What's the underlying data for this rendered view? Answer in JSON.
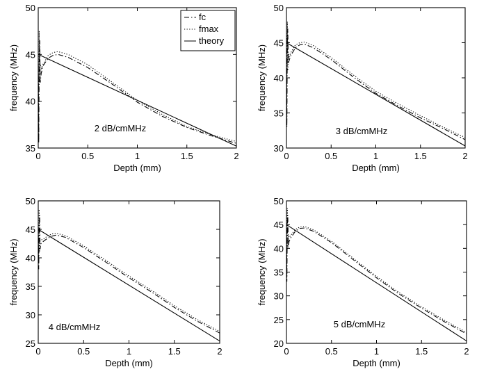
{
  "chart_data": [
    {
      "type": "line",
      "xlabel": "Depth (mm)",
      "ylabel": "frequency (MHz)",
      "annotation": "2 dB/cmMHz",
      "xlim": [
        0,
        2
      ],
      "ylim": [
        35,
        50
      ],
      "xticks": [
        0,
        0.5,
        1,
        1.5,
        2
      ],
      "xtick_labels": [
        "0",
        "0.5",
        "1",
        "1.5",
        "2"
      ],
      "yticks": [
        35,
        40,
        45,
        50
      ],
      "ytick_labels": [
        "35",
        "40",
        "45",
        "50"
      ],
      "legend": {
        "position": "top-right",
        "entries": [
          "fc",
          "fmax",
          "theory"
        ]
      },
      "series": [
        {
          "name": "fc",
          "style": "dash-dot",
          "x": [
            0,
            0.005,
            0.01,
            0.015,
            0.02,
            0.03,
            0.05,
            0.1,
            0.15,
            0.2,
            0.3,
            0.5,
            0.75,
            1.0,
            1.25,
            1.5,
            1.75,
            2.0
          ],
          "y": [
            44.0,
            35.5,
            43.5,
            46.5,
            42.0,
            43.0,
            43.8,
            44.6,
            44.9,
            45.0,
            44.7,
            43.6,
            41.8,
            39.9,
            38.4,
            37.2,
            36.3,
            35.5
          ]
        },
        {
          "name": "fmax",
          "style": "dotted",
          "x": [
            0,
            0.005,
            0.01,
            0.015,
            0.02,
            0.03,
            0.05,
            0.1,
            0.15,
            0.2,
            0.3,
            0.5,
            0.75,
            1.0,
            1.25,
            1.5,
            1.75,
            2.0
          ],
          "y": [
            46.0,
            36.0,
            47.5,
            42.0,
            44.0,
            43.5,
            44.0,
            44.9,
            45.2,
            45.3,
            45.0,
            43.9,
            42.0,
            40.1,
            38.6,
            37.3,
            36.4,
            35.7
          ]
        },
        {
          "name": "theory",
          "style": "solid",
          "x": [
            0,
            2
          ],
          "y": [
            45,
            35.2
          ]
        }
      ]
    },
    {
      "type": "line",
      "xlabel": "Depth (mm)",
      "ylabel": "frequency (MHz)",
      "annotation": "3 dB/cmMHz",
      "xlim": [
        0,
        2
      ],
      "ylim": [
        30,
        50
      ],
      "xticks": [
        0,
        0.5,
        1,
        1.5,
        2
      ],
      "xtick_labels": [
        "0",
        "0.5",
        "1",
        "1.5",
        "2"
      ],
      "yticks": [
        30,
        35,
        40,
        45,
        50
      ],
      "ytick_labels": [
        "30",
        "35",
        "40",
        "45",
        "50"
      ],
      "series": [
        {
          "name": "fc",
          "style": "dash-dot",
          "x": [
            0,
            0.005,
            0.01,
            0.015,
            0.02,
            0.03,
            0.05,
            0.1,
            0.15,
            0.2,
            0.3,
            0.5,
            0.75,
            1.0,
            1.25,
            1.5,
            1.75,
            2.0
          ],
          "y": [
            44.0,
            33.0,
            45.5,
            47.0,
            42.0,
            42.5,
            43.2,
            44.3,
            44.7,
            44.8,
            44.3,
            42.6,
            40.1,
            37.8,
            36.0,
            34.3,
            32.8,
            31.2
          ]
        },
        {
          "name": "fmax",
          "style": "dotted",
          "x": [
            0,
            0.005,
            0.01,
            0.015,
            0.02,
            0.03,
            0.05,
            0.1,
            0.15,
            0.2,
            0.3,
            0.5,
            0.75,
            1.0,
            1.25,
            1.5,
            1.75,
            2.0
          ],
          "y": [
            46.0,
            34.0,
            48.0,
            41.0,
            43.5,
            43.0,
            43.6,
            44.7,
            45.0,
            45.1,
            44.6,
            42.9,
            40.4,
            38.1,
            36.3,
            34.6,
            33.0,
            31.5
          ]
        },
        {
          "name": "theory",
          "style": "solid",
          "x": [
            0,
            2
          ],
          "y": [
            45,
            30.3
          ]
        }
      ]
    },
    {
      "type": "line",
      "xlabel": "Depth (mm)",
      "ylabel": "frequency (MHz)",
      "annotation": "4 dB/cmMHz",
      "xlim": [
        0,
        2
      ],
      "ylim": [
        25,
        50
      ],
      "xticks": [
        0,
        0.5,
        1,
        1.5,
        2
      ],
      "xtick_labels": [
        "0",
        "0.5",
        "1",
        "1.5",
        "2"
      ],
      "yticks": [
        25,
        30,
        35,
        40,
        45,
        50
      ],
      "ytick_labels": [
        "25",
        "30",
        "35",
        "40",
        "45",
        "50"
      ],
      "series": [
        {
          "name": "fc",
          "style": "dash-dot",
          "x": [
            0,
            0.005,
            0.01,
            0.015,
            0.02,
            0.03,
            0.05,
            0.1,
            0.15,
            0.2,
            0.3,
            0.5,
            0.75,
            1.0,
            1.25,
            1.5,
            1.75,
            2.0
          ],
          "y": [
            44.0,
            38.0,
            45.0,
            47.5,
            41.5,
            42.5,
            42.8,
            43.4,
            43.8,
            44.0,
            43.6,
            41.8,
            39.2,
            36.5,
            34.0,
            31.3,
            28.9,
            26.8
          ]
        },
        {
          "name": "fmax",
          "style": "dotted",
          "x": [
            0,
            0.005,
            0.01,
            0.015,
            0.02,
            0.03,
            0.05,
            0.1,
            0.15,
            0.2,
            0.3,
            0.5,
            0.75,
            1.0,
            1.25,
            1.5,
            1.75,
            2.0
          ],
          "y": [
            46.0,
            39.0,
            48.5,
            41.0,
            43.0,
            43.2,
            43.2,
            43.8,
            44.2,
            44.3,
            43.9,
            42.1,
            39.5,
            36.8,
            34.3,
            31.6,
            29.2,
            27.1
          ]
        },
        {
          "name": "theory",
          "style": "solid",
          "x": [
            0,
            2
          ],
          "y": [
            45,
            25.4
          ]
        }
      ]
    },
    {
      "type": "line",
      "xlabel": "Depth (mm)",
      "ylabel": "frequency (MHz)",
      "annotation": "5 dB/cmMHz",
      "xlim": [
        0,
        2
      ],
      "ylim": [
        20,
        50
      ],
      "xticks": [
        0,
        0.5,
        1,
        1.5,
        2
      ],
      "xtick_labels": [
        "0",
        "0.5",
        "1",
        "1.5",
        "2"
      ],
      "yticks": [
        20,
        25,
        30,
        35,
        40,
        45,
        50
      ],
      "ytick_labels": [
        "20",
        "25",
        "30",
        "35",
        "40",
        "45",
        "50"
      ],
      "series": [
        {
          "name": "fc",
          "style": "dash-dot",
          "x": [
            0,
            0.005,
            0.01,
            0.015,
            0.02,
            0.03,
            0.05,
            0.1,
            0.15,
            0.2,
            0.3,
            0.5,
            0.75,
            1.0,
            1.25,
            1.5,
            1.75,
            2.0
          ],
          "y": [
            44.0,
            33.0,
            45.0,
            47.0,
            40.5,
            41.5,
            42.3,
            43.6,
            44.2,
            44.3,
            43.6,
            41.2,
            37.5,
            33.8,
            30.4,
            27.4,
            24.6,
            22.0
          ]
        },
        {
          "name": "fmax",
          "style": "dotted",
          "x": [
            0,
            0.005,
            0.01,
            0.015,
            0.02,
            0.03,
            0.05,
            0.1,
            0.15,
            0.2,
            0.3,
            0.5,
            0.75,
            1.0,
            1.25,
            1.5,
            1.75,
            2.0
          ],
          "y": [
            46.0,
            34.0,
            48.5,
            40.0,
            42.5,
            42.3,
            42.8,
            44.0,
            44.5,
            44.6,
            43.9,
            41.5,
            37.8,
            34.1,
            30.7,
            27.7,
            24.9,
            22.3
          ]
        },
        {
          "name": "theory",
          "style": "solid",
          "x": [
            0,
            2
          ],
          "y": [
            45,
            20.5
          ]
        }
      ]
    }
  ]
}
